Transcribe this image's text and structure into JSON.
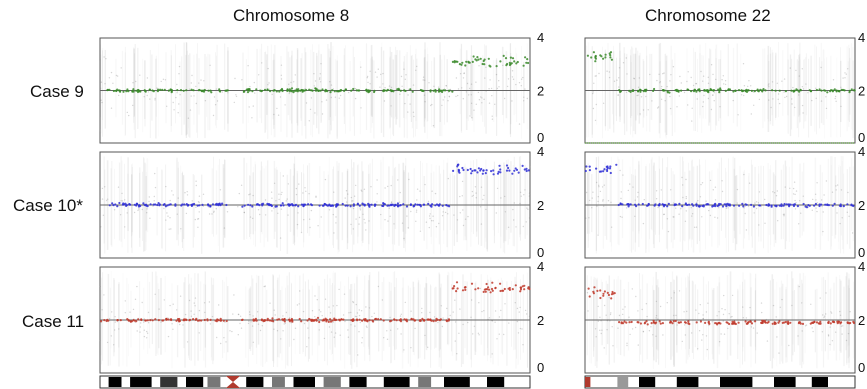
{
  "column_titles": [
    "Chromosome 8",
    "Chromosome 22"
  ],
  "row_labels": [
    "Case 9",
    "Case 10*",
    "Case 11"
  ],
  "colors": {
    "case9": "#3a8a2a",
    "case10": "#2f2fd6",
    "case11": "#c0392b",
    "background_noise": "#9a9a9a"
  },
  "chart_data": [
    {
      "type": "scatter",
      "title": "Chromosome 8",
      "ylim": [
        0,
        4
      ],
      "y_ticks": [
        "4",
        "2",
        "0"
      ],
      "reference_line": 2,
      "series": [
        {
          "name": "Case 9",
          "color": "#3a8a2a",
          "segments": [
            {
              "x": [
                0.0,
                0.82
              ],
              "y": 2.0
            },
            {
              "x": [
                0.82,
                1.0
              ],
              "y": 3.1
            }
          ]
        },
        {
          "name": "Case 10*",
          "color": "#2f2fd6",
          "segments": [
            {
              "x": [
                0.0,
                0.82
              ],
              "y": 2.0
            },
            {
              "x": [
                0.82,
                1.0
              ],
              "y": 3.3
            }
          ]
        },
        {
          "name": "Case 11",
          "color": "#c0392b",
          "segments": [
            {
              "x": [
                0.0,
                0.82
              ],
              "y": 2.0
            },
            {
              "x": [
                0.82,
                1.0
              ],
              "y": 3.2
            }
          ]
        }
      ]
    },
    {
      "type": "scatter",
      "title": "Chromosome 22",
      "ylim": [
        0,
        4
      ],
      "y_ticks": [
        "4",
        "2",
        "0"
      ],
      "reference_line": 2,
      "series": [
        {
          "name": "Case 9",
          "color": "#3a8a2a",
          "segments": [
            {
              "x": [
                0.0,
                0.12
              ],
              "y": 3.3
            },
            {
              "x": [
                0.12,
                1.0
              ],
              "y": 2.0
            }
          ]
        },
        {
          "name": "Case 10*",
          "color": "#2f2fd6",
          "segments": [
            {
              "x": [
                0.0,
                0.12
              ],
              "y": 3.4
            },
            {
              "x": [
                0.12,
                1.0
              ],
              "y": 2.0
            }
          ]
        },
        {
          "name": "Case 11",
          "color": "#c0392b",
          "segments": [
            {
              "x": [
                0.0,
                0.12
              ],
              "y": 3.0
            },
            {
              "x": [
                0.12,
                1.0
              ],
              "y": 1.9
            }
          ]
        }
      ]
    }
  ]
}
